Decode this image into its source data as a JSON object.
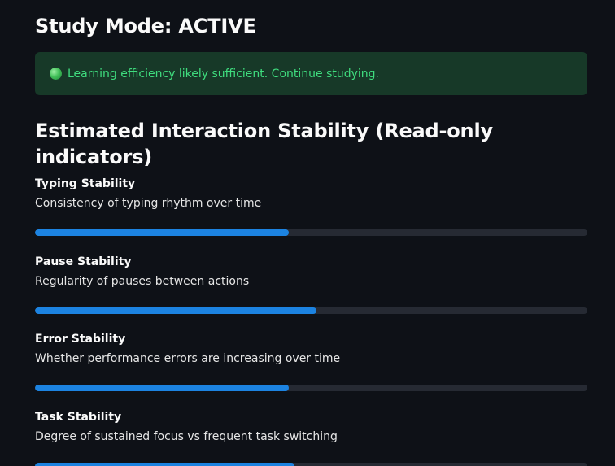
{
  "header": {
    "mode_title": "Study Mode: ACTIVE"
  },
  "alert": {
    "icon": "green-circle-icon",
    "message": "Learning efficiency likely sufficient. Continue studying.",
    "color": "#3fdc7e",
    "background": "#173928"
  },
  "stability": {
    "title": "Estimated Interaction Stability (Read-only indicators)",
    "bar_color": "#1c83e1",
    "metrics": [
      {
        "name": "Typing Stability",
        "description": "Consistency of typing rhythm over time",
        "level": 0.46
      },
      {
        "name": "Pause Stability",
        "description": "Regularity of pauses between actions",
        "level": 0.51
      },
      {
        "name": "Error Stability",
        "description": "Whether performance errors are increasing over time",
        "level": 0.46
      },
      {
        "name": "Task Stability",
        "description": "Degree of sustained focus vs frequent task switching",
        "level": 0.47
      }
    ]
  }
}
